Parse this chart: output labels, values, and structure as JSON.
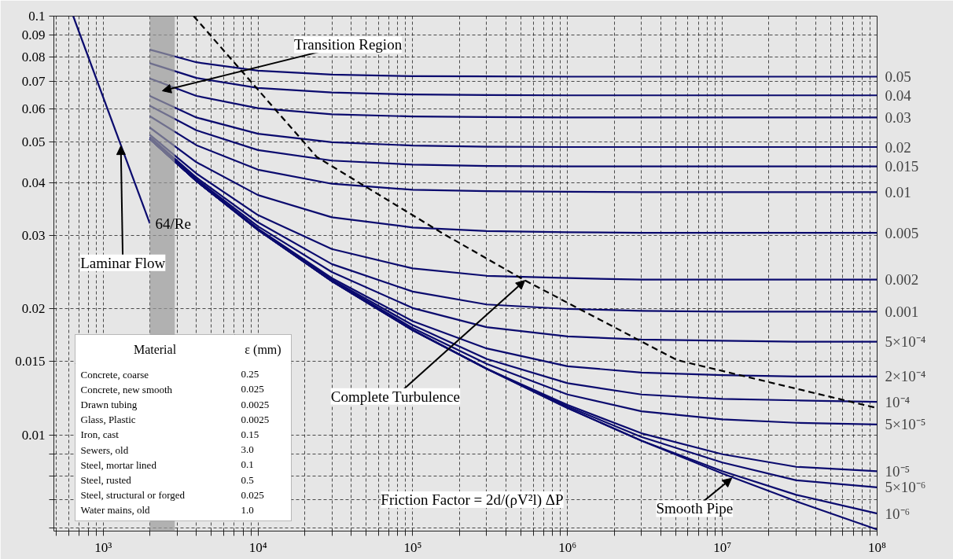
{
  "chart_data": {
    "type": "line",
    "log": "xy",
    "grid": true,
    "line_style": "solid",
    "xlim": [
      480,
      100000000
    ],
    "ylim": [
      0.0059,
      0.1
    ],
    "xticks": [
      {
        "value": 500,
        "label": null
      },
      {
        "value": 600,
        "label": null
      },
      {
        "value": 700,
        "label": null
      },
      {
        "value": 800,
        "label": null
      },
      {
        "value": 900,
        "label": null
      },
      {
        "value": 1000,
        "label": "10³"
      },
      {
        "value": 2000,
        "label": null
      },
      {
        "value": 3000,
        "label": null
      },
      {
        "value": 4000,
        "label": null
      },
      {
        "value": 5000,
        "label": null
      },
      {
        "value": 6000,
        "label": null
      },
      {
        "value": 7000,
        "label": null
      },
      {
        "value": 8000,
        "label": null
      },
      {
        "value": 9000,
        "label": null
      },
      {
        "value": 10000,
        "label": "10⁴"
      },
      {
        "value": 20000,
        "label": null
      },
      {
        "value": 30000,
        "label": null
      },
      {
        "value": 40000,
        "label": null
      },
      {
        "value": 50000,
        "label": null
      },
      {
        "value": 60000,
        "label": null
      },
      {
        "value": 70000,
        "label": null
      },
      {
        "value": 80000,
        "label": null
      },
      {
        "value": 90000,
        "label": null
      },
      {
        "value": 100000,
        "label": "10⁵"
      },
      {
        "value": 200000,
        "label": null
      },
      {
        "value": 300000,
        "label": null
      },
      {
        "value": 400000,
        "label": null
      },
      {
        "value": 500000,
        "label": null
      },
      {
        "value": 600000,
        "label": null
      },
      {
        "value": 700000,
        "label": null
      },
      {
        "value": 800000,
        "label": null
      },
      {
        "value": 900000,
        "label": null
      },
      {
        "value": 1000000,
        "label": "10⁶"
      },
      {
        "value": 2000000,
        "label": null
      },
      {
        "value": 3000000,
        "label": null
      },
      {
        "value": 4000000,
        "label": null
      },
      {
        "value": 5000000,
        "label": null
      },
      {
        "value": 6000000,
        "label": null
      },
      {
        "value": 7000000,
        "label": null
      },
      {
        "value": 8000000,
        "label": null
      },
      {
        "value": 9000000,
        "label": null
      },
      {
        "value": 10000000,
        "label": "10⁷"
      },
      {
        "value": 20000000,
        "label": null
      },
      {
        "value": 30000000,
        "label": null
      },
      {
        "value": 40000000,
        "label": null
      },
      {
        "value": 50000000,
        "label": null
      },
      {
        "value": 60000000,
        "label": null
      },
      {
        "value": 70000000,
        "label": null
      },
      {
        "value": 80000000,
        "label": null
      },
      {
        "value": 90000000,
        "label": null
      },
      {
        "value": 100000000,
        "label": "10⁸"
      }
    ],
    "yticks": [
      0.1,
      0.09,
      0.08,
      0.07,
      0.06,
      0.05,
      0.04,
      0.03,
      0.02,
      0.015,
      0.01,
      {
        "value": 0.009,
        "label": null
      },
      {
        "value": 0.008,
        "label": null
      },
      {
        "value": 0.007,
        "label": null
      },
      {
        "value": 0.006,
        "label": null
      }
    ],
    "x": [
      2000,
      4000,
      10000,
      30000,
      100000,
      300000,
      1000000,
      3000000,
      10000000,
      30000000,
      100000000
    ],
    "bands": [
      {
        "axis": "x",
        "from": 2000,
        "to": 2900,
        "color": "#9a9a9a",
        "label": "Transition Region"
      }
    ],
    "series": [
      {
        "name": "0.05",
        "color": "#0b0b6e",
        "values": [
          0.0832,
          0.0776,
          0.0741,
          0.0725,
          0.0719,
          0.0718,
          0.0717,
          0.0717,
          0.0717,
          0.0717,
          0.0717
        ]
      },
      {
        "name": "0.04",
        "color": "#0b0b6e",
        "values": [
          0.0772,
          0.0712,
          0.0674,
          0.0657,
          0.065,
          0.0648,
          0.0647,
          0.0647,
          0.0647,
          0.0647,
          0.0647
        ]
      },
      {
        "name": "0.03",
        "color": "#0b0b6e",
        "values": [
          0.071,
          0.0645,
          0.0603,
          0.0583,
          0.0576,
          0.0574,
          0.0573,
          0.0573,
          0.0573,
          0.0573,
          0.0573
        ]
      },
      {
        "name": "0.02",
        "color": "#0b0b6e",
        "values": [
          0.0645,
          0.0573,
          0.0524,
          0.05,
          0.0491,
          0.0488,
          0.0487,
          0.0487,
          0.0487,
          0.0487,
          0.0487
        ]
      },
      {
        "name": "0.015",
        "color": "#0b0b6e",
        "values": [
          0.0611,
          0.0534,
          0.0479,
          0.0452,
          0.0442,
          0.0439,
          0.0438,
          0.0438,
          0.0438,
          0.0438,
          0.0438
        ]
      },
      {
        "name": "0.01",
        "color": "#0b0b6e",
        "values": [
          0.0577,
          0.0492,
          0.043,
          0.0398,
          0.0385,
          0.0382,
          0.0381,
          0.038,
          0.038,
          0.038,
          0.038
        ]
      },
      {
        "name": "0.005",
        "color": "#0b0b6e",
        "values": [
          0.0542,
          0.0448,
          0.0374,
          0.0331,
          0.0313,
          0.0307,
          0.0305,
          0.0304,
          0.0304,
          0.0304,
          0.0304
        ]
      },
      {
        "name": "0.002",
        "color": "#0b0b6e",
        "values": [
          0.0521,
          0.0421,
          0.0335,
          0.0278,
          0.025,
          0.024,
          0.0237,
          0.0235,
          0.0235,
          0.0235,
          0.0235
        ]
      },
      {
        "name": "0.001",
        "color": "#0b0b6e",
        "values": [
          0.0515,
          0.0412,
          0.0322,
          0.0256,
          0.022,
          0.0205,
          0.02,
          0.0198,
          0.0197,
          0.0197,
          0.0197
        ]
      },
      {
        "name": "5×10⁻⁴",
        "color": "#0b0b6e",
        "values": [
          0.0512,
          0.0408,
          0.0315,
          0.0245,
          0.0201,
          0.0181,
          0.0172,
          0.0169,
          0.0168,
          0.0167,
          0.0167
        ]
      },
      {
        "name": "2×10⁻⁴",
        "color": "#0b0b6e",
        "values": [
          0.051,
          0.0405,
          0.0311,
          0.0237,
          0.0187,
          0.0161,
          0.0146,
          0.0141,
          0.0139,
          0.0138,
          0.0138
        ]
      },
      {
        "name": "10⁻⁴",
        "color": "#0b0b6e",
        "values": [
          0.0509,
          0.0404,
          0.031,
          0.0235,
          0.0183,
          0.0152,
          0.0133,
          0.0125,
          0.0122,
          0.0121,
          0.012
        ]
      },
      {
        "name": "5×10⁻⁵",
        "color": "#0b0b6e",
        "values": [
          0.0509,
          0.0404,
          0.0309,
          0.0234,
          0.018,
          0.0148,
          0.0125,
          0.0114,
          0.0109,
          0.0107,
          0.0106
        ]
      },
      {
        "name": "10⁻⁵",
        "color": "#0b0b6e",
        "values": [
          0.0509,
          0.0404,
          0.0309,
          0.0233,
          0.0178,
          0.0144,
          0.0118,
          0.0101,
          0.009,
          0.0084,
          0.0082
        ]
      },
      {
        "name": "5×10⁻⁶",
        "color": "#0b0b6e",
        "values": [
          0.0509,
          0.0404,
          0.0309,
          0.0233,
          0.0178,
          0.0144,
          0.0117,
          0.0099,
          0.0086,
          0.0078,
          0.0075
        ]
      },
      {
        "name": "10⁻⁶",
        "color": "#0b0b6e",
        "values": [
          0.0509,
          0.0404,
          0.0309,
          0.0233,
          0.0178,
          0.0144,
          0.0116,
          0.0097,
          0.0082,
          0.0072,
          0.0065
        ]
      },
      {
        "color": "#0b0b6e",
        "values": [
          0.0509,
          0.0404,
          0.0309,
          0.0233,
          0.0178,
          0.0144,
          0.0116,
          0.0097,
          0.0081,
          0.00695,
          0.00595
        ]
      },
      {
        "name": "64/Re",
        "color": "#0b0b6e",
        "x": [
          640,
          2000
        ],
        "values": [
          0.1,
          0.032
        ]
      },
      {
        "color": "#000000",
        "line_style": "dashed",
        "x": [
          3840,
          24000,
          156000,
          530000,
          5100000,
          100000000
        ],
        "values": [
          0.1,
          0.0461,
          0.0303,
          0.0234,
          0.0151,
          0.0116
        ]
      }
    ],
    "annotations": [
      {
        "text": "Laminar Flow",
        "x": 1300,
        "y": 0.049
      },
      {
        "text": "Complete Turbulence",
        "x": 530000,
        "y": 0.0234
      },
      {
        "text": "Smooth Pipe",
        "x": 11500000,
        "y": 0.00789
      },
      "Friction Factor = 2d/(ρV²l) ΔP",
      "Material",
      "ε (mm)",
      "Concrete, coarse",
      "0.25",
      "Concrete, new smooth",
      "0.025",
      "Drawn tubing",
      "0.0025",
      "Glass, Plastic",
      "0.0025",
      "Iron, cast",
      "0.15",
      "Sewers, old",
      "3.0",
      "Steel, mortar lined",
      "0.1",
      "Steel, rusted",
      "0.5",
      "Steel, structural or forged",
      "0.025",
      "Water mains, old",
      "1.0"
    ]
  }
}
